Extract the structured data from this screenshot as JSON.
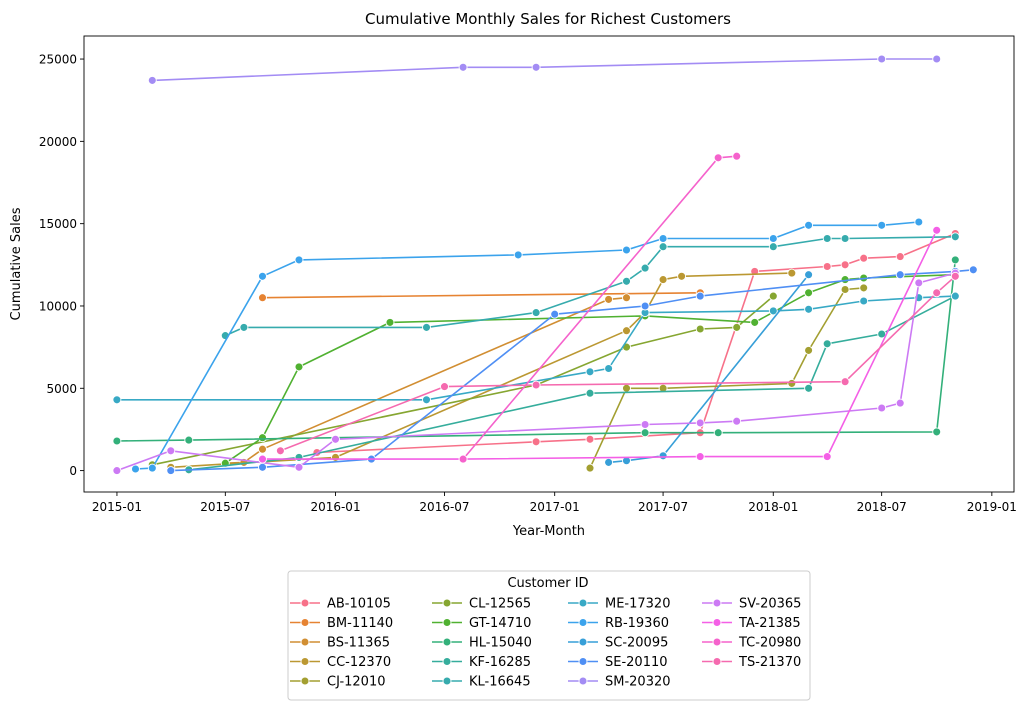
{
  "chart_data": {
    "type": "line",
    "title": "Cumulative Monthly Sales for Richest Customers",
    "xlabel": "Year-Month",
    "ylabel": "Cumulative Sales",
    "x_type": "date",
    "xlim": [
      "2014-11-07",
      "2019-02-07"
    ],
    "ylim": [
      -1300,
      26400
    ],
    "x_ticks": [
      {
        "date": "2015-01-01",
        "label": "2015-01"
      },
      {
        "date": "2015-07-01",
        "label": "2015-07"
      },
      {
        "date": "2016-01-01",
        "label": "2016-01"
      },
      {
        "date": "2016-07-01",
        "label": "2016-07"
      },
      {
        "date": "2017-01-01",
        "label": "2017-01"
      },
      {
        "date": "2017-07-01",
        "label": "2017-07"
      },
      {
        "date": "2018-01-01",
        "label": "2018-01"
      },
      {
        "date": "2018-07-01",
        "label": "2018-07"
      },
      {
        "date": "2019-01-01",
        "label": "2019-01"
      }
    ],
    "y_ticks": [
      0,
      5000,
      10000,
      15000,
      20000,
      25000
    ],
    "grid": false,
    "legend": {
      "title": "Customer ID",
      "position": "below",
      "columns": 4
    },
    "series": [
      {
        "name": "AB-10105",
        "color": "#f77189",
        "x": [
          "2015-12-01",
          "2016-12-01",
          "2017-03-01",
          "2017-09-01",
          "2017-12-01",
          "2018-04-01",
          "2018-05-01",
          "2018-06-01",
          "2018-08-01",
          "2018-11-01"
        ],
        "y": [
          1100,
          1750,
          1900,
          2300,
          12100,
          12400,
          12500,
          12900,
          13000,
          14400
        ]
      },
      {
        "name": "BM-11140",
        "color": "#e68332",
        "x": [
          "2015-09-01",
          "2017-09-01"
        ],
        "y": [
          10500,
          10800
        ]
      },
      {
        "name": "BS-11365",
        "color": "#d18e32",
        "x": [
          "2015-07-01",
          "2015-08-01",
          "2015-09-01",
          "2017-04-01",
          "2017-05-01"
        ],
        "y": [
          450,
          500,
          1300,
          10400,
          10500
        ]
      },
      {
        "name": "CC-12370",
        "color": "#bb9832",
        "x": [
          "2015-04-01",
          "2016-01-01",
          "2017-05-01",
          "2017-06-01",
          "2017-07-01",
          "2017-08-01",
          "2018-02-01"
        ],
        "y": [
          200,
          800,
          8500,
          9600,
          11600,
          11800,
          12000
        ]
      },
      {
        "name": "CJ-12010",
        "color": "#a39f31",
        "x": [
          "2017-03-01",
          "2017-05-01",
          "2017-07-01",
          "2018-02-01",
          "2018-03-01",
          "2018-05-01",
          "2018-06-01"
        ],
        "y": [
          150,
          5000,
          5000,
          5300,
          7300,
          11000,
          11100
        ]
      },
      {
        "name": "CL-12565",
        "color": "#86a631",
        "x": [
          "2015-03-01",
          "2016-12-01",
          "2017-05-01",
          "2017-09-01",
          "2017-11-01",
          "2018-01-01"
        ],
        "y": [
          350,
          5200,
          7500,
          8600,
          8700,
          10600
        ]
      },
      {
        "name": "GT-14710",
        "color": "#50b131",
        "x": [
          "2015-07-01",
          "2015-09-01",
          "2015-11-01",
          "2016-04-01",
          "2017-06-01",
          "2017-12-01",
          "2018-03-01",
          "2018-05-01",
          "2018-06-01",
          "2018-11-01"
        ],
        "y": [
          450,
          2000,
          6300,
          9000,
          9400,
          9000,
          10800,
          11600,
          11700,
          11900
        ]
      },
      {
        "name": "HL-15040",
        "color": "#33b07a",
        "x": [
          "2015-01-01",
          "2015-05-01",
          "2017-06-01",
          "2017-10-01",
          "2018-10-01",
          "2018-11-01"
        ],
        "y": [
          1800,
          1850,
          2300,
          2300,
          2350,
          12800
        ]
      },
      {
        "name": "KF-16285",
        "color": "#35ad9c",
        "x": [
          "2015-05-01",
          "2015-11-01",
          "2017-03-01",
          "2018-03-01",
          "2018-04-01",
          "2018-07-01",
          "2018-11-01"
        ],
        "y": [
          50,
          800,
          4700,
          5000,
          7700,
          8300,
          10600
        ]
      },
      {
        "name": "KL-16645",
        "color": "#36abad",
        "x": [
          "2015-07-01",
          "2015-08-01",
          "2016-06-01",
          "2016-12-01",
          "2017-05-01",
          "2017-06-01",
          "2017-07-01",
          "2018-01-01",
          "2018-04-01",
          "2018-05-01",
          "2018-11-01"
        ],
        "y": [
          8200,
          8700,
          8700,
          9600,
          11500,
          12300,
          13600,
          13600,
          14100,
          14100,
          14200
        ]
      },
      {
        "name": "ME-17320",
        "color": "#38a9c5",
        "x": [
          "2015-01-01",
          "2016-06-01",
          "2017-03-01",
          "2017-04-01",
          "2017-06-01",
          "2018-01-01",
          "2018-03-01",
          "2018-06-01",
          "2018-09-01",
          "2018-11-01"
        ],
        "y": [
          4300,
          4300,
          6000,
          6200,
          9600,
          9700,
          9800,
          10300,
          10500,
          10600
        ]
      },
      {
        "name": "RB-19360",
        "color": "#3ba3ec",
        "x": [
          "2015-02-01",
          "2015-03-01",
          "2015-09-01",
          "2015-11-01",
          "2016-11-01",
          "2017-05-01",
          "2017-07-01",
          "2018-01-01",
          "2018-03-01",
          "2018-07-01",
          "2018-09-01"
        ],
        "y": [
          100,
          150,
          11800,
          12800,
          13100,
          13400,
          14100,
          14100,
          14900,
          14900,
          15100
        ]
      },
      {
        "name": "SC-20095",
        "color": "#379fd8",
        "x": [
          "2017-04-01",
          "2017-05-01",
          "2017-07-01",
          "2018-03-01"
        ],
        "y": [
          500,
          600,
          900,
          11900
        ]
      },
      {
        "name": "SE-20110",
        "color": "#4f8ff4",
        "x": [
          "2015-04-01",
          "2015-09-01",
          "2016-03-01",
          "2017-01-01",
          "2017-06-01",
          "2017-09-01",
          "2018-08-01",
          "2018-11-01",
          "2018-12-01"
        ],
        "y": [
          0,
          200,
          700,
          9500,
          10000,
          10600,
          11900,
          12100,
          12200
        ]
      },
      {
        "name": "SM-20320",
        "color": "#a38cf4",
        "x": [
          "2015-03-01",
          "2016-08-01",
          "2016-12-01",
          "2018-07-01",
          "2018-10-01"
        ],
        "y": [
          23700,
          24500,
          24500,
          25000,
          25000
        ]
      },
      {
        "name": "SV-20365",
        "color": "#cc7af4",
        "x": [
          "2015-01-01",
          "2015-04-01",
          "2015-11-01",
          "2016-01-01",
          "2017-06-01",
          "2017-09-01",
          "2017-11-01",
          "2018-07-01",
          "2018-08-01",
          "2018-09-01",
          "2018-11-01"
        ],
        "y": [
          0,
          1200,
          200,
          1900,
          2800,
          2900,
          3000,
          3800,
          4100,
          11400,
          12000
        ]
      },
      {
        "name": "TA-21385",
        "color": "#f45fe6",
        "x": [
          "2015-09-01",
          "2016-08-01",
          "2017-09-01",
          "2018-04-01",
          "2018-10-01"
        ],
        "y": [
          700,
          700,
          850,
          850,
          14600
        ]
      },
      {
        "name": "TC-20980",
        "color": "#f562cc",
        "x": [
          "2016-08-01",
          "2017-10-01",
          "2017-11-01"
        ],
        "y": [
          700,
          19000,
          19100
        ]
      },
      {
        "name": "TS-21370",
        "color": "#f56aaf",
        "x": [
          "2015-10-01",
          "2016-07-01",
          "2016-12-01",
          "2018-05-01",
          "2018-10-01",
          "2018-11-01"
        ],
        "y": [
          1200,
          5100,
          5200,
          5400,
          10800,
          11800
        ]
      }
    ]
  }
}
